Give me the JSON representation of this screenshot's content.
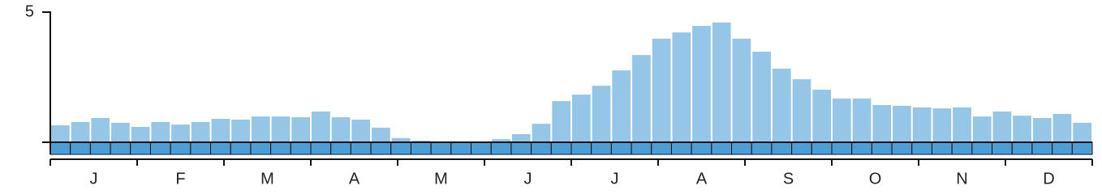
{
  "chart_data": {
    "type": "bar",
    "values": [
      0.65,
      0.78,
      0.93,
      0.75,
      0.59,
      0.78,
      0.68,
      0.78,
      0.9,
      0.87,
      0.99,
      0.99,
      0.96,
      1.18,
      0.96,
      0.87,
      0.56,
      0.16,
      0.06,
      0.03,
      0,
      0,
      0.12,
      0.31,
      0.71,
      1.58,
      1.83,
      2.17,
      2.76,
      3.35,
      3.98,
      4.22,
      4.47,
      4.6,
      3.98,
      3.48,
      2.83,
      2.42,
      2.02,
      1.68,
      1.68,
      1.43,
      1.4,
      1.34,
      1.3,
      1.34,
      0.99,
      1.18,
      1.02,
      0.93,
      1.09,
      0.75
    ],
    "x_labels": [
      "J",
      "F",
      "M",
      "A",
      "M",
      "J",
      "J",
      "A",
      "S",
      "O",
      "N",
      "D"
    ],
    "color": "#95c6e8",
    "strip_color": "#4a9fd8",
    "ylim": [
      0,
      5
    ],
    "yticks": [
      5
    ],
    "grid": false
  }
}
